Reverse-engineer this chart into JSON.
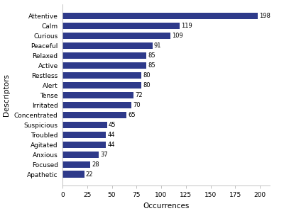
{
  "categories": [
    "Apathetic",
    "Focused",
    "Anxious",
    "Agitated",
    "Troubled",
    "Suspicious",
    "Concentrated",
    "Irritated",
    "Tense",
    "Alert",
    "Restless",
    "Active",
    "Relaxed",
    "Peaceful",
    "Curious",
    "Calm",
    "Attentive"
  ],
  "values": [
    22,
    28,
    37,
    44,
    44,
    45,
    65,
    70,
    72,
    80,
    80,
    85,
    85,
    91,
    109,
    119,
    198
  ],
  "bar_color": "#2e3a8a",
  "xlabel": "Occurrences",
  "ylabel": "Descriptors",
  "xlim": [
    0,
    210
  ],
  "xticks": [
    0,
    25,
    50,
    75,
    100,
    125,
    150,
    175,
    200
  ],
  "label_fontsize": 7.5,
  "tick_fontsize": 6.5,
  "value_fontsize": 6.0,
  "ytick_fontsize": 6.5,
  "background_color": "#ffffff",
  "bar_height": 0.65
}
